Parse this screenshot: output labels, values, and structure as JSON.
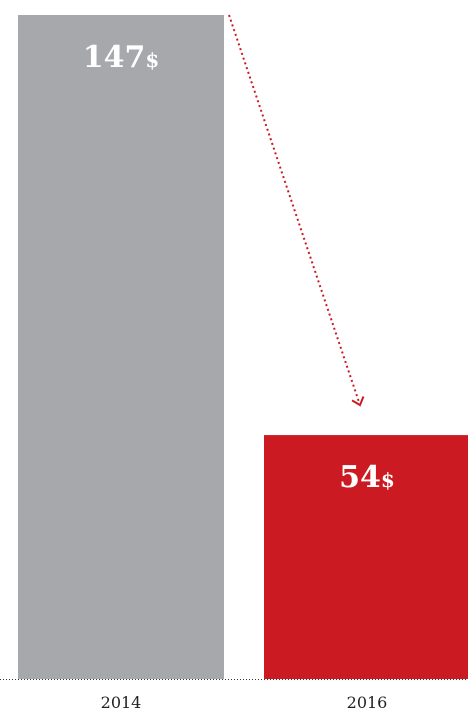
{
  "chart_data": {
    "type": "bar",
    "categories": [
      "2014",
      "2016"
    ],
    "values": [
      147,
      54
    ],
    "value_labels": [
      "147",
      "54"
    ],
    "value_unit": "$",
    "title": "",
    "xlabel": "",
    "ylabel": "",
    "ylim": [
      0,
      147
    ],
    "grid": false,
    "legend": "none",
    "colors": {
      "bar_2014": "#a7a8ab",
      "bar_2016": "#cc1a22",
      "arrow": "#cc1a22",
      "baseline": "#333333"
    },
    "annotations": [
      {
        "type": "dotted-arrow",
        "from": "2014",
        "to": "2016"
      }
    ]
  }
}
